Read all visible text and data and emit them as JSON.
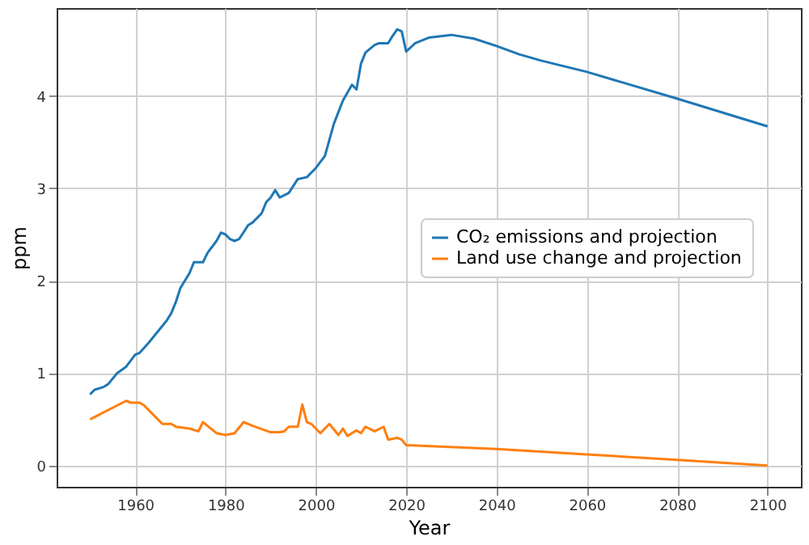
{
  "chart_data": {
    "type": "line",
    "xlabel": "Year",
    "ylabel": "ppm",
    "xlim": [
      1942.6,
      2107.4
    ],
    "xticks": [
      1960,
      1980,
      2000,
      2020,
      2040,
      2060,
      2080,
      2100
    ],
    "ylim": [
      -0.23,
      4.95
    ],
    "yticks": [
      0,
      1,
      2,
      3,
      4
    ],
    "grid": true,
    "legend": "right",
    "series": [
      {
        "name": "CO₂ emissions and projection",
        "color": "#1f77b4",
        "x": [
          1950,
          1951,
          1953,
          1954,
          1956,
          1958,
          1960,
          1961,
          1963,
          1965,
          1967,
          1968,
          1969,
          1970,
          1972,
          1973,
          1975,
          1976,
          1978,
          1979,
          1980,
          1981,
          1982,
          1983,
          1985,
          1986,
          1988,
          1989,
          1990,
          1991,
          1992,
          1994,
          1996,
          1998,
          2000,
          2002,
          2004,
          2006,
          2008,
          2009,
          2010,
          2011,
          2013,
          2014,
          2016,
          2017,
          2018,
          2019,
          2020,
          2022,
          2025,
          2030,
          2035,
          2040,
          2045,
          2050,
          2060,
          2080,
          2100
        ],
        "values": [
          0.77,
          0.82,
          0.85,
          0.88,
          1.0,
          1.07,
          1.2,
          1.22,
          1.33,
          1.45,
          1.57,
          1.65,
          1.77,
          1.92,
          2.08,
          2.2,
          2.2,
          2.3,
          2.43,
          2.52,
          2.5,
          2.45,
          2.43,
          2.45,
          2.6,
          2.63,
          2.73,
          2.85,
          2.9,
          2.98,
          2.9,
          2.95,
          3.1,
          3.12,
          3.22,
          3.35,
          3.7,
          3.95,
          4.12,
          4.07,
          4.35,
          4.47,
          4.55,
          4.57,
          4.57,
          4.65,
          4.72,
          4.7,
          4.48,
          4.57,
          4.63,
          4.66,
          4.62,
          4.54,
          4.45,
          4.38,
          4.26,
          3.97,
          3.67
        ]
      },
      {
        "name": "Land use change and projection",
        "color": "#ff7f0e",
        "x": [
          1950,
          1958,
          1959,
          1961,
          1962,
          1964,
          1966,
          1968,
          1969,
          1972,
          1974,
          1975,
          1976,
          1978,
          1980,
          1982,
          1984,
          1986,
          1990,
          1992,
          1993,
          1994,
          1996,
          1997,
          1998,
          1999,
          2001,
          2003,
          2005,
          2006,
          2007,
          2009,
          2010,
          2011,
          2013,
          2015,
          2016,
          2018,
          2019,
          2020,
          2040,
          2060,
          2080,
          2100
        ],
        "values": [
          0.5,
          0.7,
          0.68,
          0.68,
          0.65,
          0.55,
          0.45,
          0.45,
          0.42,
          0.4,
          0.37,
          0.47,
          0.43,
          0.35,
          0.33,
          0.35,
          0.47,
          0.43,
          0.36,
          0.36,
          0.37,
          0.42,
          0.42,
          0.66,
          0.47,
          0.45,
          0.35,
          0.45,
          0.33,
          0.4,
          0.32,
          0.38,
          0.35,
          0.42,
          0.37,
          0.42,
          0.28,
          0.3,
          0.28,
          0.22,
          0.18,
          0.12,
          0.06,
          0.0
        ]
      }
    ]
  }
}
